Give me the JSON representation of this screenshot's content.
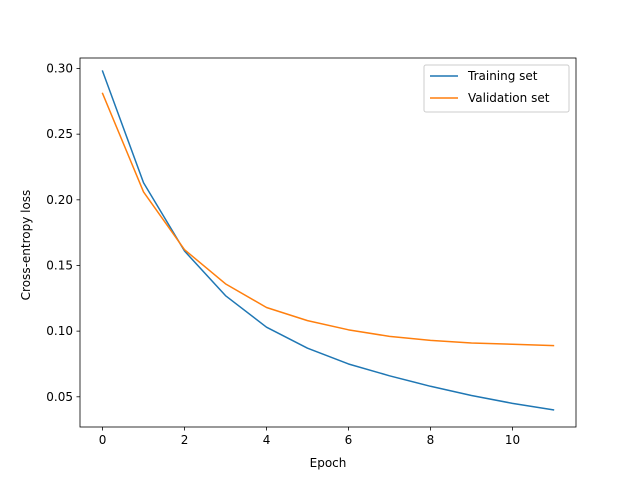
{
  "chart_data": {
    "type": "line",
    "xlabel": "Epoch",
    "ylabel": "Cross-entropy loss",
    "xlim": [
      -0.55,
      11.55
    ],
    "ylim": [
      0.027,
      0.308
    ],
    "x_ticks": [
      0,
      2,
      4,
      6,
      8,
      10
    ],
    "y_ticks": [
      0.05,
      0.1,
      0.15,
      0.2,
      0.25,
      0.3
    ],
    "y_tick_labels": [
      "0.05",
      "0.10",
      "0.15",
      "0.20",
      "0.25",
      "0.30"
    ],
    "grid": false,
    "legend_position": "top-right",
    "x": [
      0,
      1,
      2,
      3,
      4,
      5,
      6,
      7,
      8,
      9,
      10,
      11
    ],
    "series": [
      {
        "name": "Training set",
        "color": "#1f77b4",
        "values": [
          0.298,
          0.213,
          0.161,
          0.127,
          0.103,
          0.087,
          0.075,
          0.066,
          0.058,
          0.051,
          0.045,
          0.04
        ]
      },
      {
        "name": "Validation set",
        "color": "#ff7f0e",
        "values": [
          0.281,
          0.206,
          0.162,
          0.136,
          0.118,
          0.108,
          0.101,
          0.096,
          0.093,
          0.091,
          0.09,
          0.089
        ]
      }
    ]
  }
}
